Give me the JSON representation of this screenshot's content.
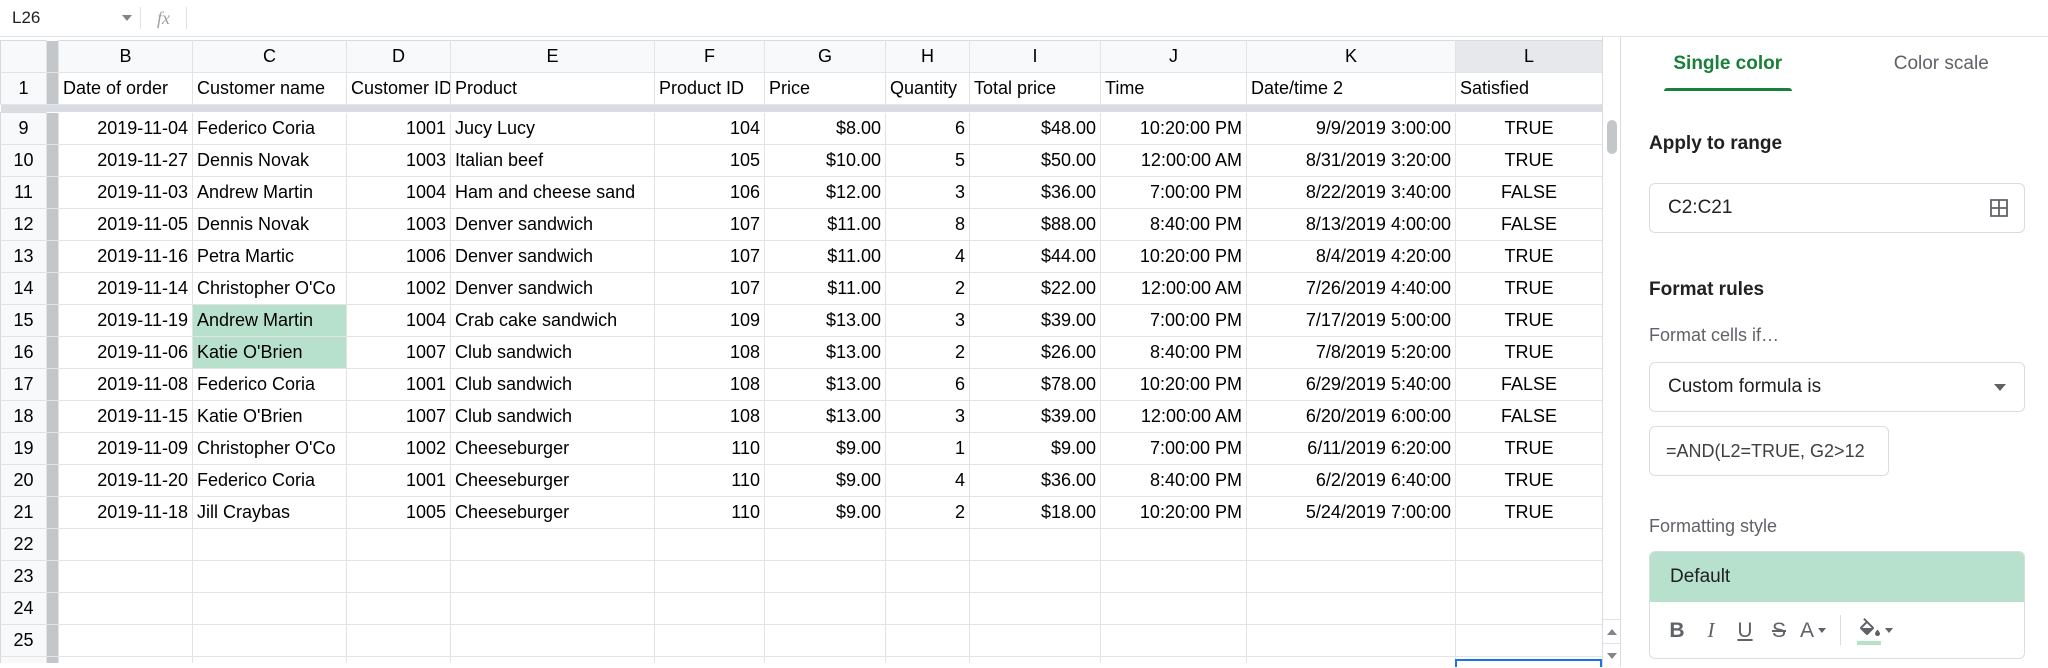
{
  "topbar": {
    "name_box_value": "L26",
    "fx_label": "fx"
  },
  "grid": {
    "column_letters": [
      "B",
      "C",
      "D",
      "E",
      "F",
      "G",
      "H",
      "I",
      "J",
      "K",
      "L"
    ],
    "selected_column": "L",
    "header_row": {
      "n": "1",
      "cells": [
        "Date of order",
        "Customer name",
        "Customer ID",
        "Product",
        "Product ID",
        "Price",
        "Quantity",
        "Total price",
        "Time",
        "Date/time 2",
        "Satisfied"
      ]
    },
    "rows": [
      {
        "n": "9",
        "highlight": false,
        "cells": [
          "2019-11-04",
          "Federico Coria",
          "1001",
          "Jucy Lucy",
          "104",
          "$8.00",
          "6",
          "$48.00",
          "10:20:00 PM",
          "9/9/2019 3:00:00",
          "TRUE"
        ]
      },
      {
        "n": "10",
        "highlight": false,
        "cells": [
          "2019-11-27",
          "Dennis Novak",
          "1003",
          "Italian beef",
          "105",
          "$10.00",
          "5",
          "$50.00",
          "12:00:00 AM",
          "8/31/2019 3:20:00",
          "TRUE"
        ]
      },
      {
        "n": "11",
        "highlight": false,
        "cells": [
          "2019-11-03",
          "Andrew Martin",
          "1004",
          "Ham and cheese sand",
          "106",
          "$12.00",
          "3",
          "$36.00",
          "7:00:00 PM",
          "8/22/2019 3:40:00",
          "FALSE"
        ]
      },
      {
        "n": "12",
        "highlight": false,
        "cells": [
          "2019-11-05",
          "Dennis Novak",
          "1003",
          "Denver sandwich",
          "107",
          "$11.00",
          "8",
          "$88.00",
          "8:40:00 PM",
          "8/13/2019 4:00:00",
          "FALSE"
        ]
      },
      {
        "n": "13",
        "highlight": false,
        "cells": [
          "2019-11-16",
          "Petra Martic",
          "1006",
          "Denver sandwich",
          "107",
          "$11.00",
          "4",
          "$44.00",
          "10:20:00 PM",
          "8/4/2019 4:20:00",
          "TRUE"
        ]
      },
      {
        "n": "14",
        "highlight": false,
        "cells": [
          "2019-11-14",
          "Christopher O'Co",
          "1002",
          "Denver sandwich",
          "107",
          "$11.00",
          "2",
          "$22.00",
          "12:00:00 AM",
          "7/26/2019 4:40:00",
          "TRUE"
        ]
      },
      {
        "n": "15",
        "highlight": true,
        "cells": [
          "2019-11-19",
          "Andrew Martin",
          "1004",
          "Crab cake sandwich",
          "109",
          "$13.00",
          "3",
          "$39.00",
          "7:00:00 PM",
          "7/17/2019 5:00:00",
          "TRUE"
        ]
      },
      {
        "n": "16",
        "highlight": true,
        "cells": [
          "2019-11-06",
          "Katie O'Brien",
          "1007",
          "Club sandwich",
          "108",
          "$13.00",
          "2",
          "$26.00",
          "8:40:00 PM",
          "7/8/2019 5:20:00",
          "TRUE"
        ]
      },
      {
        "n": "17",
        "highlight": false,
        "cells": [
          "2019-11-08",
          "Federico Coria",
          "1001",
          "Club sandwich",
          "108",
          "$13.00",
          "6",
          "$78.00",
          "10:20:00 PM",
          "6/29/2019 5:40:00",
          "FALSE"
        ]
      },
      {
        "n": "18",
        "highlight": false,
        "cells": [
          "2019-11-15",
          "Katie O'Brien",
          "1007",
          "Club sandwich",
          "108",
          "$13.00",
          "3",
          "$39.00",
          "12:00:00 AM",
          "6/20/2019 6:00:00",
          "FALSE"
        ]
      },
      {
        "n": "19",
        "highlight": false,
        "cells": [
          "2019-11-09",
          "Christopher O'Co",
          "1002",
          "Cheeseburger",
          "110",
          "$9.00",
          "1",
          "$9.00",
          "7:00:00 PM",
          "6/11/2019 6:20:00",
          "TRUE"
        ]
      },
      {
        "n": "20",
        "highlight": false,
        "cells": [
          "2019-11-20",
          "Federico Coria",
          "1001",
          "Cheeseburger",
          "110",
          "$9.00",
          "4",
          "$36.00",
          "8:40:00 PM",
          "6/2/2019 6:40:00",
          "TRUE"
        ]
      },
      {
        "n": "21",
        "highlight": false,
        "cells": [
          "2019-11-18",
          "Jill Craybas",
          "1005",
          "Cheeseburger",
          "110",
          "$9.00",
          "2",
          "$18.00",
          "10:20:00 PM",
          "5/24/2019 7:00:00",
          "TRUE"
        ]
      }
    ],
    "empty_row_numbers": [
      "22",
      "23",
      "24",
      "25"
    ],
    "partial_row_number": "26"
  },
  "sidebar": {
    "tabs": [
      {
        "label": "Single color",
        "active": true
      },
      {
        "label": "Color scale",
        "active": false
      }
    ],
    "apply_to_range": {
      "heading": "Apply to range",
      "value": "C2:C21"
    },
    "format_rules": {
      "heading": "Format rules",
      "condition_label": "Format cells if…",
      "condition_value": "Custom formula is",
      "formula": "=AND(L2=TRUE, G2>12"
    },
    "formatting_style": {
      "heading": "Formatting style",
      "preview_text": "Default"
    },
    "toolbar_icons": [
      "bold",
      "italic",
      "underline",
      "strikethrough",
      "text-color",
      "fill-color"
    ]
  },
  "colors": {
    "accent_green": "#188038",
    "highlight_green": "#b7e1cd",
    "selection_blue": "#1a73e8"
  }
}
